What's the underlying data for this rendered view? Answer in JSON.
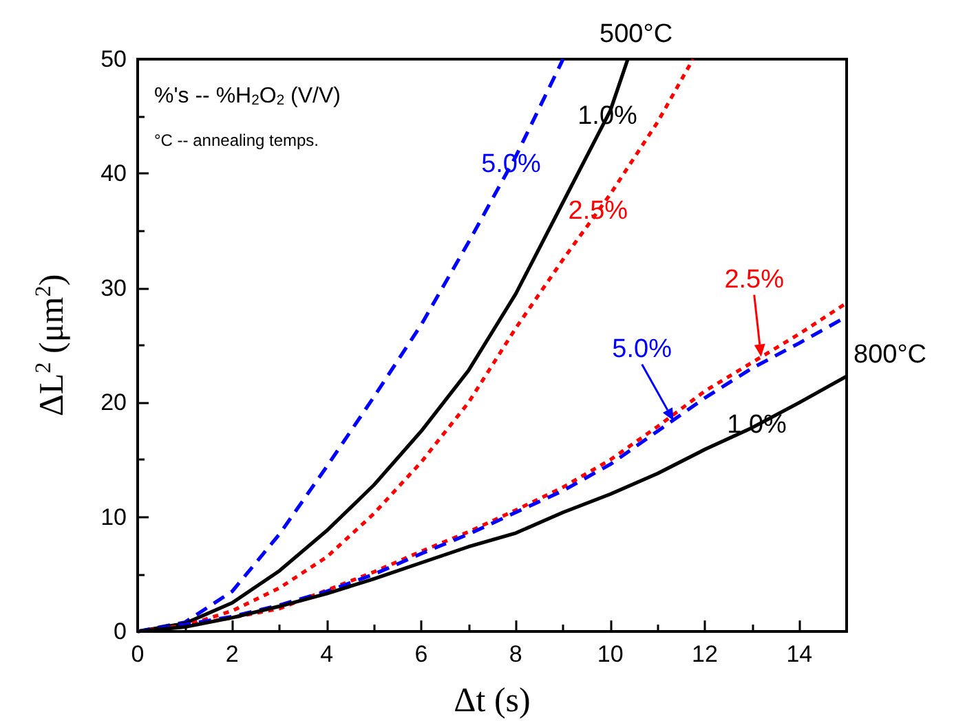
{
  "chart_data": {
    "type": "line",
    "xlabel": "Δt (s)",
    "ylabel": "ΔL$^{2}$ (μm$^{2}$)",
    "xlim": [
      0,
      15
    ],
    "xticks": [
      0,
      2,
      4,
      6,
      8,
      10,
      12,
      14
    ],
    "ylim": [
      0,
      50
    ],
    "yticks": [
      0,
      10,
      20,
      30,
      40,
      50
    ],
    "grid": false,
    "marker": "none",
    "series": [
      {
        "color": "#0000ff",
        "line_style": "dashed",
        "x": [
          0,
          1,
          2,
          3,
          4,
          5,
          6,
          7,
          8,
          9
        ],
        "values": [
          0,
          0.8,
          3.5,
          8.5,
          14.4,
          20.5,
          26.8,
          34.0,
          41.5,
          50
        ]
      },
      {
        "color": "#000000",
        "line_style": "solid",
        "x": [
          0,
          1,
          2,
          3,
          4,
          5,
          6,
          7,
          8,
          9,
          10,
          10.37
        ],
        "values": [
          0,
          0.7,
          2.5,
          5.3,
          8.8,
          12.8,
          17.5,
          22.8,
          29.5,
          37.5,
          45.5,
          50
        ]
      },
      {
        "color": "#ff0000",
        "line_style": "dotted",
        "x": [
          0,
          1,
          2,
          3,
          4,
          5,
          6,
          7,
          8,
          9,
          10,
          11,
          11.75
        ],
        "values": [
          0,
          0.5,
          1.8,
          3.8,
          6.5,
          10.3,
          14.8,
          20.0,
          26.5,
          32.5,
          38.2,
          44.5,
          50
        ]
      },
      {
        "color": "#ff0000",
        "line_style": "dotted",
        "x": [
          0,
          1,
          2,
          3,
          4,
          5,
          6,
          7,
          8,
          9,
          10,
          11,
          12,
          13,
          14,
          15
        ],
        "values": [
          0,
          0.5,
          1.2,
          2.0,
          3.6,
          5.2,
          7.0,
          8.7,
          10.6,
          12.6,
          15.0,
          17.9,
          21.0,
          23.5,
          26.0,
          28.7
        ]
      },
      {
        "color": "#0000ff",
        "line_style": "dashed",
        "x": [
          0,
          1,
          2,
          3,
          4,
          5,
          6,
          7,
          8,
          9,
          10,
          11,
          12,
          13,
          14,
          15
        ],
        "values": [
          0,
          0.6,
          1.3,
          2.3,
          3.5,
          5.0,
          6.8,
          8.5,
          10.4,
          12.3,
          14.6,
          17.5,
          20.4,
          23.0,
          25.2,
          27.5
        ]
      },
      {
        "color": "#000000",
        "line_style": "solid",
        "x": [
          0,
          1,
          2,
          3,
          4,
          5,
          6,
          7,
          8,
          9,
          10,
          11,
          12,
          13,
          14,
          15
        ],
        "values": [
          0,
          0.4,
          1.2,
          2.2,
          3.3,
          4.6,
          6.0,
          7.4,
          8.6,
          10.4,
          12.0,
          13.8,
          15.9,
          17.8,
          20.0,
          22.3
        ]
      }
    ],
    "annotations": [
      "%'s -- %H$_{2}$O$_{2}$ (V/V)",
      "°C -- annealing temps.",
      {
        "text": "500°C",
        "x": 10.37,
        "y": 50
      },
      {
        "text": "1.0%",
        "x": 9.94,
        "y": 45
      },
      {
        "text": "5.0%",
        "x": 7.9,
        "y": 40.8
      },
      {
        "text": "2.5%",
        "x": 9.74,
        "y": 36.7
      },
      {
        "text": "5.0%",
        "x": 11.34,
        "y": 18.4
      },
      {
        "text": "2.5%",
        "x": 13.19,
        "y": 24.0
      },
      {
        "text": "800°C",
        "x": 15,
        "y": 22.3
      },
      {
        "text": "1.0%",
        "x": 13.1,
        "y": 18.0
      }
    ]
  }
}
